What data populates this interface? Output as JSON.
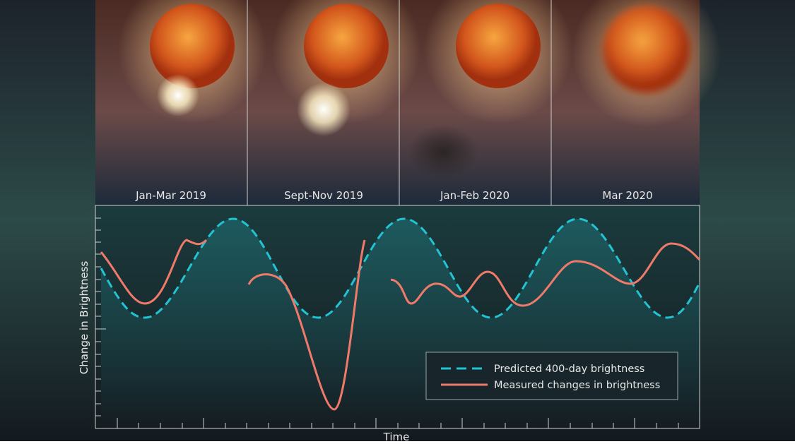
{
  "panels": [
    {
      "label": "Jan-Mar 2019"
    },
    {
      "label": "Sept-Nov  2019"
    },
    {
      "label": "Jan-Feb 2020"
    },
    {
      "label": "Mar 2020"
    }
  ],
  "chart": {
    "ylabel": "Change in Brightness",
    "xlabel": "Time",
    "legend": [
      {
        "name": "Predicted 400-day brightness",
        "color": "#22c4d4",
        "dash": true
      },
      {
        "name": "Measured changes in brightness",
        "color": "#f07a6a",
        "dash": false
      }
    ]
  }
}
